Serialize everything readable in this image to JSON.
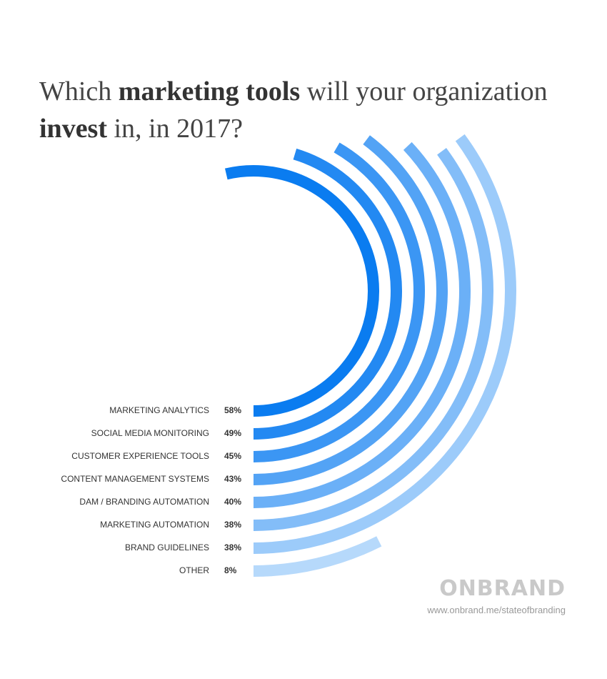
{
  "chart_data": {
    "type": "radial_bar",
    "title_parts": [
      "Which ",
      "marketing tools",
      " will your organization",
      "invest",
      " in, in 2017?"
    ],
    "categories": [
      "MARKETING ANALYTICS",
      "SOCIAL MEDIA MONITORING",
      "CUSTOMER EXPERIENCE TOOLS",
      "CONTENT MANAGEMENT SYSTEMS",
      "DAM / BRANDING AUTOMATION",
      "MARKETING AUTOMATION",
      "BRAND GUIDELINES",
      "OTHER"
    ],
    "values": [
      58,
      49,
      45,
      43,
      40,
      38,
      38,
      8
    ],
    "value_labels": [
      "58%",
      "49%",
      "45%",
      "43%",
      "40%",
      "38%",
      "38%",
      "8%"
    ],
    "colors": [
      "#0a7cf0",
      "#2389f2",
      "#3b96f4",
      "#53a3f5",
      "#6bb0f7",
      "#83bdf8",
      "#9ccbfa",
      "#b6d9fb"
    ],
    "logo": "ONBRAND",
    "source": "www.onbrand.me/stateofbranding"
  }
}
